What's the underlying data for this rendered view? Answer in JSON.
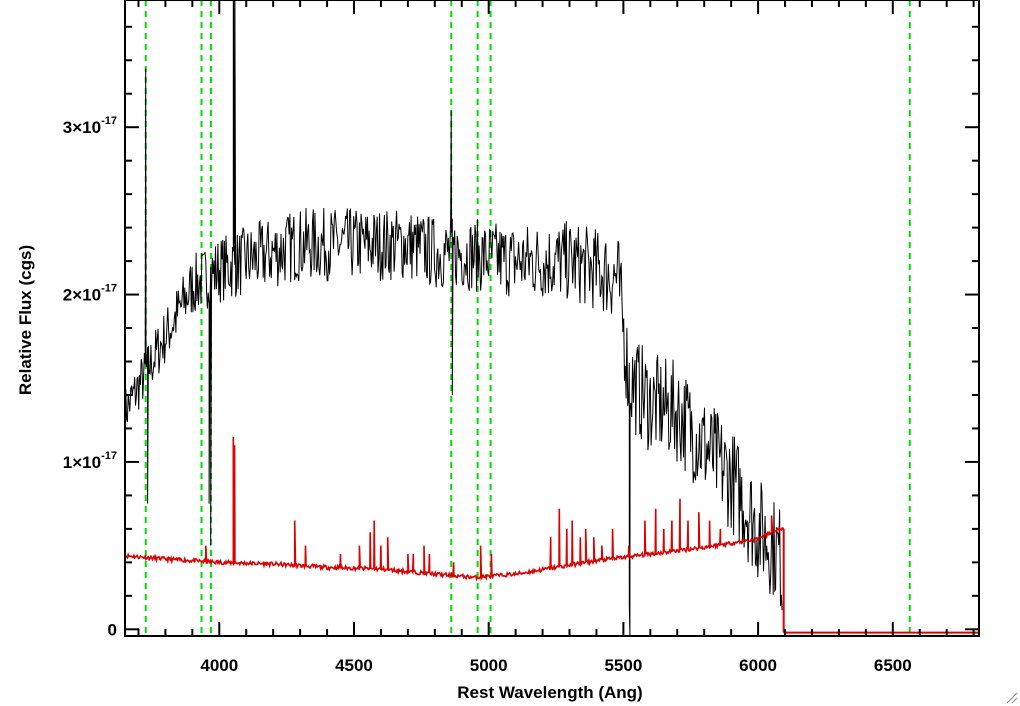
{
  "chart_data": {
    "type": "line",
    "xlabel": "Rest Wavelength (Ang)",
    "ylabel": "Relative Flux (cgs)",
    "xlim": [
      3650,
      6820
    ],
    "ylim": [
      -4e-19,
      3.76e-17
    ],
    "x_ticks": [
      {
        "value": 4000,
        "label": "4000"
      },
      {
        "value": 4500,
        "label": "4500"
      },
      {
        "value": 5000,
        "label": "5000"
      },
      {
        "value": 5500,
        "label": "5500"
      },
      {
        "value": 6000,
        "label": "6000"
      },
      {
        "value": 6500,
        "label": "6500"
      }
    ],
    "y_ticks": [
      {
        "value": 0,
        "mantissa": "0",
        "exponent": ""
      },
      {
        "value": 1e-17,
        "mantissa": "1×10",
        "exponent": "-17"
      },
      {
        "value": 2e-17,
        "mantissa": "2×10",
        "exponent": "-17"
      },
      {
        "value": 3e-17,
        "mantissa": "3×10",
        "exponent": "-17"
      }
    ],
    "x_minor_step": 100,
    "y_minor_step": 2e-18,
    "grid": false,
    "series": [
      {
        "color": "#000000",
        "noise_seed": 7,
        "cutoff": 6090,
        "points": [
          [
            3650,
            1.3e-17
          ],
          [
            3700,
            1.45e-17
          ],
          [
            3750,
            1.6e-17
          ],
          [
            3800,
            1.75e-17
          ],
          [
            3850,
            1.9e-17
          ],
          [
            3900,
            2.05e-17
          ],
          [
            3950,
            2.1e-17
          ],
          [
            4000,
            2.15e-17
          ],
          [
            4100,
            2.2e-17
          ],
          [
            4200,
            2.25e-17
          ],
          [
            4300,
            2.3e-17
          ],
          [
            4400,
            2.3e-17
          ],
          [
            4500,
            2.3e-17
          ],
          [
            4600,
            2.3e-17
          ],
          [
            4700,
            2.3e-17
          ],
          [
            4800,
            2.25e-17
          ],
          [
            4900,
            2.25e-17
          ],
          [
            5000,
            2.22e-17
          ],
          [
            5100,
            2.2e-17
          ],
          [
            5200,
            2.2e-17
          ],
          [
            5300,
            2.2e-17
          ],
          [
            5400,
            2.15e-17
          ],
          [
            5480,
            2.1e-17
          ],
          [
            5520,
            1.5e-17
          ],
          [
            5600,
            1.35e-17
          ],
          [
            5700,
            1.3e-17
          ],
          [
            5800,
            1.1e-17
          ],
          [
            5900,
            9e-18
          ],
          [
            6000,
            6e-18
          ],
          [
            6080,
            4.5e-18
          ],
          [
            6090,
            3e-18
          ]
        ],
        "noise_amplitude": [
          [
            3650,
            1.5e-18
          ],
          [
            4000,
            2e-18
          ],
          [
            4200,
            2.2e-18
          ],
          [
            5000,
            2.2e-18
          ],
          [
            5400,
            2.5e-18
          ],
          [
            5550,
            3e-18
          ],
          [
            6000,
            3.2e-18
          ],
          [
            6090,
            3e-18
          ]
        ],
        "features": [
          {
            "x": 3727,
            "y": 3.35e-17
          },
          {
            "x": 3734,
            "y": 7.5e-18
          },
          {
            "x": 3962,
            "y": 7.5e-18
          },
          {
            "x": 3968,
            "y": 5e-18
          },
          {
            "x": 4052,
            "y": 3.8e-17
          },
          {
            "x": 4054,
            "y": 3.8e-17
          },
          {
            "x": 4058,
            "y": 3.8e-17
          },
          {
            "x": 4861,
            "y": 3.1e-17
          },
          {
            "x": 4865,
            "y": 1.4e-17
          },
          {
            "x": 5522,
            "y": 1.5e-18
          },
          {
            "x": 5524,
            "y": -5e-19
          }
        ]
      },
      {
        "color": "#dd0000",
        "noise_seed": 11,
        "cutoff": 6095,
        "points": [
          [
            3650,
            4.4e-18
          ],
          [
            3800,
            4.2e-18
          ],
          [
            4000,
            4e-18
          ],
          [
            4200,
            3.9e-18
          ],
          [
            4400,
            3.7e-18
          ],
          [
            4600,
            3.6e-18
          ],
          [
            4800,
            3.3e-18
          ],
          [
            4950,
            3.1e-18
          ],
          [
            5100,
            3.3e-18
          ],
          [
            5250,
            3.7e-18
          ],
          [
            5400,
            4.1e-18
          ],
          [
            5600,
            4.5e-18
          ],
          [
            5800,
            4.9e-18
          ],
          [
            6000,
            5.4e-18
          ],
          [
            6080,
            6e-18
          ],
          [
            6095,
            6e-18
          ]
        ],
        "noise_amplitude": [
          [
            3650,
            1.2e-19
          ],
          [
            6095,
            1.2e-19
          ]
        ],
        "features": [
          {
            "x": 3950,
            "y": 5e-18
          },
          {
            "x": 4052,
            "y": 1.15e-17
          },
          {
            "x": 4057,
            "y": 1.1e-17
          },
          {
            "x": 4280,
            "y": 6.5e-18
          },
          {
            "x": 4320,
            "y": 5e-18
          },
          {
            "x": 4450,
            "y": 4.5e-18
          },
          {
            "x": 4520,
            "y": 5e-18
          },
          {
            "x": 4560,
            "y": 5.8e-18
          },
          {
            "x": 4575,
            "y": 6.5e-18
          },
          {
            "x": 4600,
            "y": 5e-18
          },
          {
            "x": 4625,
            "y": 5.5e-18
          },
          {
            "x": 4700,
            "y": 4.5e-18
          },
          {
            "x": 4720,
            "y": 4.5e-18
          },
          {
            "x": 4760,
            "y": 5e-18
          },
          {
            "x": 4780,
            "y": 4.5e-18
          },
          {
            "x": 4870,
            "y": 4e-18
          },
          {
            "x": 4970,
            "y": 5e-18
          },
          {
            "x": 5010,
            "y": 4.5e-18
          },
          {
            "x": 5230,
            "y": 5.5e-18
          },
          {
            "x": 5262,
            "y": 7.2e-18
          },
          {
            "x": 5290,
            "y": 6e-18
          },
          {
            "x": 5310,
            "y": 6.5e-18
          },
          {
            "x": 5340,
            "y": 5.5e-18
          },
          {
            "x": 5360,
            "y": 6e-18
          },
          {
            "x": 5390,
            "y": 5.5e-18
          },
          {
            "x": 5420,
            "y": 5e-18
          },
          {
            "x": 5460,
            "y": 6e-18
          },
          {
            "x": 5520,
            "y": 5e-18
          },
          {
            "x": 5580,
            "y": 6.5e-18
          },
          {
            "x": 5620,
            "y": 7.2e-18
          },
          {
            "x": 5650,
            "y": 6e-18
          },
          {
            "x": 5680,
            "y": 6.5e-18
          },
          {
            "x": 5710,
            "y": 7.8e-18
          },
          {
            "x": 5740,
            "y": 6.5e-18
          },
          {
            "x": 5780,
            "y": 7e-18
          },
          {
            "x": 5820,
            "y": 6.5e-18
          },
          {
            "x": 5860,
            "y": 6e-18
          },
          {
            "x": 6050,
            "y": 6.8e-18
          }
        ]
      }
    ],
    "tail": {
      "color": "#dd0000",
      "from": 6095,
      "to": 6820,
      "y": -2e-19
    },
    "reference_lines": {
      "color": "#00dd00",
      "style": "dashed",
      "x": [
        3727,
        3934,
        3969,
        4861,
        4959,
        5007,
        6563
      ]
    }
  }
}
